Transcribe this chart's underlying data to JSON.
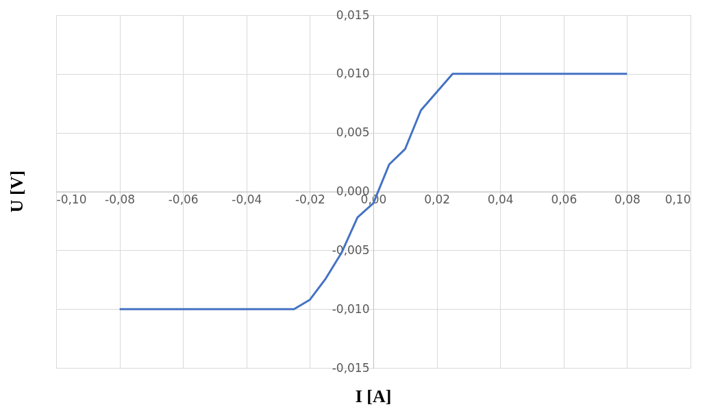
{
  "chart_data": {
    "type": "line",
    "xlabel": "I [A]",
    "ylabel": "U [V]",
    "x": [
      -0.08,
      -0.06,
      -0.04,
      -0.025,
      -0.02,
      -0.015,
      -0.01,
      -0.005,
      0,
      0.005,
      0.01,
      0.015,
      0.025,
      0.04,
      0.06,
      0.08
    ],
    "series": [
      {
        "color": "#4472c4",
        "values": [
          -0.01,
          -0.01,
          -0.01,
          -0.01,
          -0.0092,
          -0.0074,
          -0.0052,
          -0.0022,
          -0.001,
          0.0023,
          0.0036,
          0.0069,
          0.01,
          0.01,
          0.01,
          0.01
        ]
      }
    ],
    "xlim": [
      -0.1,
      0.1
    ],
    "ylim": [
      -0.015,
      0.015
    ],
    "xticks": [
      {
        "value": -0.1,
        "label": "-0,10"
      },
      {
        "value": -0.08,
        "label": "-0,08"
      },
      {
        "value": -0.06,
        "label": "-0,06"
      },
      {
        "value": -0.04,
        "label": "-0,04"
      },
      {
        "value": -0.02,
        "label": "-0,02"
      },
      {
        "value": 0,
        "label": "0,00"
      },
      {
        "value": 0.02,
        "label": "0,02"
      },
      {
        "value": 0.04,
        "label": "0,04"
      },
      {
        "value": 0.06,
        "label": "0,06"
      },
      {
        "value": 0.08,
        "label": "0,08"
      },
      {
        "value": 0.1,
        "label": "0,10"
      }
    ],
    "yticks": [
      {
        "value": -0.015,
        "label": "-0,015"
      },
      {
        "value": -0.01,
        "label": "-0,010"
      },
      {
        "value": -0.005,
        "label": "-0,005"
      },
      {
        "value": 0,
        "label": "0,000"
      },
      {
        "value": 0.005,
        "label": "0,005"
      },
      {
        "value": 0.01,
        "label": "0,010"
      },
      {
        "value": 0.015,
        "label": "0,015"
      }
    ],
    "grid": true,
    "legend": false,
    "marker": "none",
    "line_style": "solid"
  }
}
